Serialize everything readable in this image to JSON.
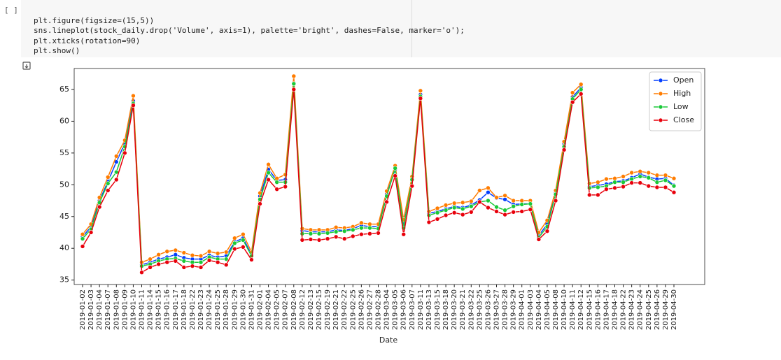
{
  "cell": {
    "prompt": "[ ]",
    "code": [
      "plt.figure(figsize=(15,5))",
      "sns.lineplot(stock_daily.drop('Volume', axis=1), palette='bright', dashes=False, marker='o');",
      "plt.xticks(rotation=90)",
      "plt.show()"
    ]
  },
  "chart_data": {
    "type": "line",
    "xlabel": "Date",
    "x": [
      "2019-01-02",
      "2019-01-03",
      "2019-01-04",
      "2019-01-07",
      "2019-01-08",
      "2019-01-09",
      "2019-01-10",
      "2019-01-11",
      "2019-01-14",
      "2019-01-15",
      "2019-01-16",
      "2019-01-17",
      "2019-01-18",
      "2019-01-22",
      "2019-01-23",
      "2019-01-24",
      "2019-01-25",
      "2019-01-28",
      "2019-01-29",
      "2019-01-30",
      "2019-01-31",
      "2019-02-01",
      "2019-02-04",
      "2019-02-05",
      "2019-02-07",
      "2019-02-08",
      "2019-02-12",
      "2019-02-13",
      "2019-02-15",
      "2019-02-19",
      "2019-02-21",
      "2019-02-22",
      "2019-02-25",
      "2019-02-26",
      "2019-02-27",
      "2019-02-28",
      "2019-03-04",
      "2019-03-05",
      "2019-03-06",
      "2019-03-07",
      "2019-03-11",
      "2019-03-13",
      "2019-03-15",
      "2019-03-18",
      "2019-03-20",
      "2019-03-21",
      "2019-03-22",
      "2019-03-25",
      "2019-03-26",
      "2019-03-27",
      "2019-03-28",
      "2019-03-29",
      "2019-04-01",
      "2019-04-03",
      "2019-04-04",
      "2019-04-05",
      "2019-04-08",
      "2019-04-10",
      "2019-04-11",
      "2019-04-12",
      "2019-04-15",
      "2019-04-16",
      "2019-04-17",
      "2019-04-18",
      "2019-04-22",
      "2019-04-23",
      "2019-04-24",
      "2019-04-25",
      "2019-04-26",
      "2019-04-29",
      "2019-04-30"
    ],
    "series": [
      {
        "name": "Open",
        "color": "#023eff",
        "values": [
          41.8,
          43.4,
          47.5,
          50.5,
          53.6,
          56.5,
          63.2,
          37.4,
          37.8,
          38.3,
          38.6,
          39.0,
          38.5,
          38.3,
          38.3,
          38.9,
          38.6,
          38.8,
          41.0,
          41.6,
          39.0,
          48.2,
          52.4,
          50.7,
          50.8,
          66.0,
          42.8,
          42.6,
          42.6,
          42.6,
          42.9,
          42.8,
          43.1,
          43.6,
          43.4,
          43.4,
          48.5,
          52.4,
          43.5,
          50.9,
          64.2,
          45.5,
          45.8,
          46.2,
          46.6,
          46.4,
          46.8,
          47.6,
          48.8,
          47.9,
          47.7,
          46.9,
          47.0,
          47.0,
          42.0,
          43.8,
          48.7,
          56.5,
          63.8,
          65.3,
          49.7,
          49.9,
          50.1,
          50.5,
          50.6,
          51.1,
          51.7,
          51.2,
          50.9,
          51.0,
          49.9
        ]
      },
      {
        "name": "High",
        "color": "#ff7c00",
        "values": [
          42.2,
          43.8,
          48.0,
          51.2,
          54.5,
          57.0,
          64.0,
          37.8,
          38.3,
          39.0,
          39.5,
          39.7,
          39.3,
          38.9,
          38.8,
          39.5,
          39.2,
          39.4,
          41.6,
          42.2,
          39.4,
          48.7,
          53.2,
          51.0,
          51.6,
          67.1,
          43.1,
          42.9,
          42.9,
          42.9,
          43.3,
          43.2,
          43.4,
          44.0,
          43.8,
          43.8,
          49.0,
          53.0,
          44.5,
          51.3,
          64.8,
          45.8,
          46.3,
          46.8,
          47.1,
          47.2,
          47.4,
          49.1,
          49.5,
          48.0,
          48.3,
          47.5,
          47.5,
          47.5,
          42.5,
          44.4,
          49.1,
          56.8,
          64.5,
          65.8,
          50.2,
          50.4,
          50.9,
          51.0,
          51.3,
          51.9,
          52.1,
          51.9,
          51.5,
          51.5,
          51.0
        ]
      },
      {
        "name": "Low",
        "color": "#1ac938",
        "values": [
          41.5,
          43.0,
          47.2,
          50.2,
          52.0,
          56.0,
          62.8,
          37.2,
          37.5,
          38.0,
          38.3,
          38.4,
          38.0,
          37.8,
          37.8,
          38.6,
          38.3,
          38.3,
          40.8,
          41.3,
          38.8,
          47.7,
          51.9,
          50.4,
          50.4,
          65.9,
          42.3,
          42.3,
          42.3,
          42.4,
          42.6,
          42.7,
          42.9,
          43.2,
          43.2,
          43.1,
          48.2,
          52.6,
          43.2,
          50.8,
          63.9,
          45.2,
          45.6,
          46.0,
          46.4,
          46.2,
          46.6,
          47.3,
          47.5,
          46.5,
          46.0,
          46.6,
          46.9,
          47.0,
          41.7,
          43.4,
          48.5,
          56.0,
          63.5,
          65.0,
          49.5,
          49.6,
          49.8,
          50.4,
          50.4,
          50.9,
          51.3,
          51.1,
          50.4,
          50.7,
          49.8
        ]
      },
      {
        "name": "Close",
        "color": "#e8000b",
        "values": [
          40.3,
          42.5,
          46.5,
          49.1,
          50.8,
          55.0,
          62.5,
          36.2,
          37.0,
          37.5,
          37.8,
          38.0,
          37.0,
          37.2,
          37.0,
          38.1,
          37.8,
          37.4,
          39.9,
          40.2,
          38.2,
          47.0,
          50.8,
          49.3,
          49.7,
          65.0,
          41.3,
          41.4,
          41.3,
          41.5,
          41.8,
          41.5,
          41.9,
          42.2,
          42.3,
          42.4,
          47.3,
          51.4,
          42.2,
          49.8,
          63.6,
          44.1,
          44.6,
          45.2,
          45.6,
          45.3,
          45.7,
          47.3,
          46.4,
          45.8,
          45.3,
          45.7,
          45.8,
          46.1,
          41.4,
          42.7,
          47.5,
          55.5,
          63.0,
          64.3,
          48.4,
          48.4,
          49.3,
          49.5,
          49.7,
          50.3,
          50.3,
          49.8,
          49.6,
          49.6,
          48.8
        ]
      }
    ],
    "ylim": [
      34.3,
      68.3
    ],
    "yticks": [
      35,
      40,
      45,
      50,
      55,
      60,
      65
    ],
    "grid": false,
    "legend": "upper right"
  }
}
